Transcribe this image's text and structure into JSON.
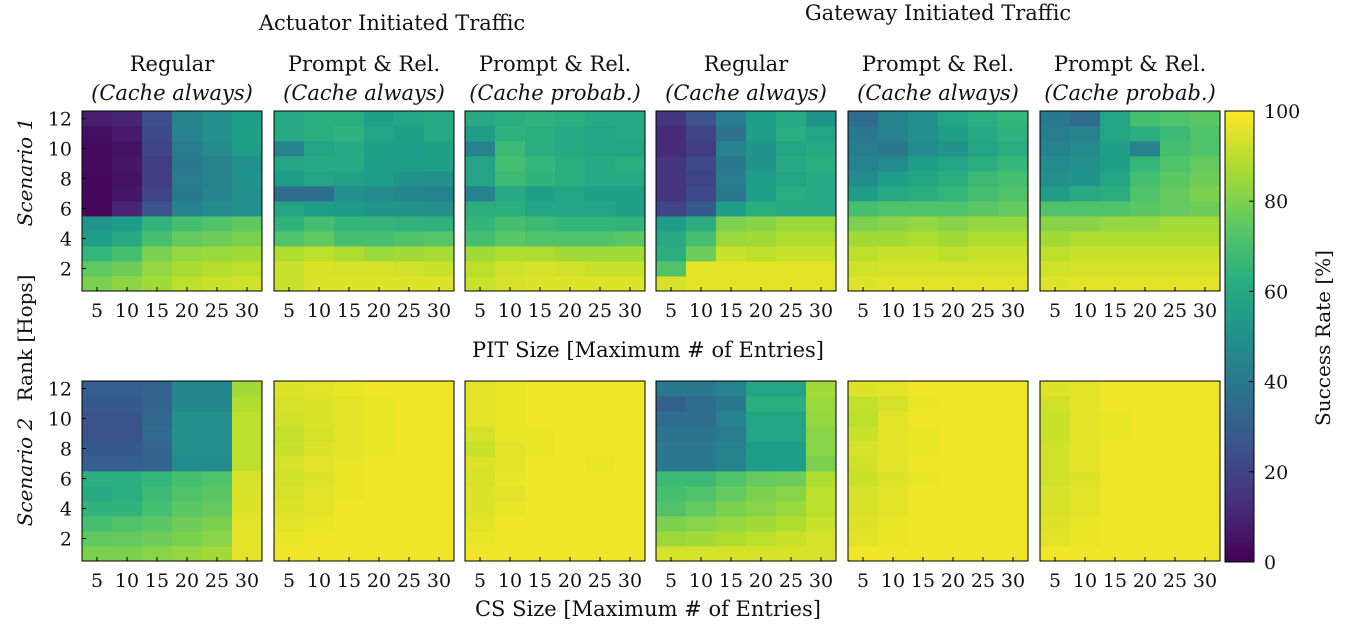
{
  "titles": {
    "actuator_group": "Actuator Initiated Traffic",
    "gateway_group": "Gateway Initiated Traffic",
    "row1_axis": "PIT Size [Maximum # of Entries]",
    "row2_axis": "CS Size [Maximum # of Entries]",
    "shared_ylabel": "Rank [Hops]",
    "scenario1": "Scenario 1",
    "scenario2": "Scenario 2"
  },
  "column_headers": [
    {
      "line1": "Regular",
      "line2": "(Cache always)"
    },
    {
      "line1": "Prompt & Rel.",
      "line2": "(Cache always)"
    },
    {
      "line1": "Prompt & Rel.",
      "line2": "(Cache probab.)"
    },
    {
      "line1": "Regular",
      "line2": "(Cache always)"
    },
    {
      "line1": "Prompt & Rel.",
      "line2": "(Cache always)"
    },
    {
      "line1": "Prompt & Rel.",
      "line2": "(Cache probab.)"
    }
  ],
  "chart_data": {
    "type": "heatmap",
    "x_ticks": [
      "5",
      "10",
      "15",
      "20",
      "25",
      "30"
    ],
    "y_ticks": [
      "2",
      "4",
      "6",
      "8",
      "10",
      "12"
    ],
    "colorbar": {
      "label": "Success Rate [%]",
      "ticks": [
        "0",
        "20",
        "40",
        "60",
        "80",
        "100"
      ],
      "range": [
        0,
        100
      ],
      "colormap": "viridis"
    },
    "grid_x_values": [
      5,
      10,
      15,
      20,
      25,
      30
    ],
    "grid_y_values": [
      1,
      2,
      3,
      4,
      5,
      6,
      7,
      8,
      9,
      10,
      11,
      12
    ],
    "panels": [
      {
        "row": 1,
        "col": 1,
        "values": [
          [
            80,
            83,
            86,
            90,
            92,
            93
          ],
          [
            75,
            78,
            84,
            87,
            89,
            90
          ],
          [
            66,
            70,
            80,
            84,
            85,
            86
          ],
          [
            55,
            60,
            70,
            76,
            78,
            80
          ],
          [
            52,
            55,
            65,
            70,
            72,
            75
          ],
          [
            2,
            10,
            25,
            45,
            48,
            50
          ],
          [
            2,
            6,
            20,
            40,
            46,
            50
          ],
          [
            2,
            5,
            18,
            42,
            45,
            52
          ],
          [
            3,
            6,
            18,
            40,
            45,
            50
          ],
          [
            3,
            5,
            20,
            42,
            48,
            55
          ],
          [
            4,
            7,
            22,
            45,
            50,
            56
          ],
          [
            8,
            10,
            24,
            45,
            50,
            55
          ]
        ]
      },
      {
        "row": 1,
        "col": 2,
        "values": [
          [
            92,
            95,
            95,
            95,
            95,
            95
          ],
          [
            92,
            95,
            94,
            94,
            93,
            92
          ],
          [
            88,
            90,
            88,
            85,
            86,
            87
          ],
          [
            72,
            75,
            70,
            70,
            72,
            73
          ],
          [
            65,
            70,
            66,
            66,
            64,
            63
          ],
          [
            58,
            55,
            54,
            52,
            51,
            50
          ],
          [
            35,
            35,
            50,
            48,
            46,
            44
          ],
          [
            55,
            58,
            57,
            55,
            52,
            50
          ],
          [
            58,
            60,
            60,
            55,
            55,
            56
          ],
          [
            45,
            58,
            60,
            56,
            55,
            56
          ],
          [
            60,
            62,
            64,
            58,
            56,
            60
          ],
          [
            60,
            62,
            62,
            56,
            58,
            60
          ]
        ]
      },
      {
        "row": 1,
        "col": 3,
        "values": [
          [
            92,
            94,
            95,
            95,
            95,
            95
          ],
          [
            90,
            93,
            94,
            93,
            92,
            92
          ],
          [
            86,
            88,
            88,
            86,
            86,
            86
          ],
          [
            70,
            74,
            72,
            72,
            72,
            74
          ],
          [
            66,
            70,
            68,
            66,
            66,
            65
          ],
          [
            62,
            62,
            58,
            58,
            58,
            56
          ],
          [
            45,
            60,
            56,
            58,
            56,
            56
          ],
          [
            58,
            68,
            65,
            62,
            60,
            60
          ],
          [
            58,
            70,
            66,
            62,
            60,
            62
          ],
          [
            45,
            68,
            62,
            60,
            58,
            58
          ],
          [
            55,
            64,
            62,
            60,
            58,
            60
          ],
          [
            60,
            62,
            64,
            62,
            60,
            60
          ]
        ]
      },
      {
        "row": 1,
        "col": 4,
        "values": [
          [
            94,
            96,
            96,
            96,
            96,
            96
          ],
          [
            72,
            96,
            96,
            96,
            96,
            96
          ],
          [
            62,
            78,
            92,
            90,
            92,
            92
          ],
          [
            60,
            70,
            85,
            86,
            88,
            88
          ],
          [
            55,
            62,
            80,
            82,
            85,
            85
          ],
          [
            20,
            28,
            55,
            62,
            60,
            60
          ],
          [
            15,
            22,
            40,
            55,
            62,
            60
          ],
          [
            15,
            20,
            42,
            55,
            58,
            60
          ],
          [
            15,
            22,
            40,
            52,
            60,
            62
          ],
          [
            12,
            18,
            45,
            52,
            58,
            60
          ],
          [
            12,
            20,
            38,
            55,
            62,
            58
          ],
          [
            15,
            25,
            42,
            55,
            60,
            52
          ]
        ]
      },
      {
        "row": 1,
        "col": 5,
        "values": [
          [
            95,
            96,
            96,
            96,
            96,
            96
          ],
          [
            93,
            94,
            94,
            94,
            94,
            94
          ],
          [
            90,
            92,
            92,
            90,
            92,
            92
          ],
          [
            86,
            86,
            88,
            86,
            88,
            88
          ],
          [
            80,
            82,
            84,
            82,
            84,
            84
          ],
          [
            70,
            72,
            72,
            72,
            74,
            76
          ],
          [
            55,
            60,
            62,
            66,
            70,
            72
          ],
          [
            48,
            55,
            58,
            62,
            68,
            70
          ],
          [
            45,
            48,
            55,
            58,
            62,
            66
          ],
          [
            42,
            40,
            48,
            52,
            58,
            62
          ],
          [
            40,
            45,
            50,
            56,
            60,
            64
          ],
          [
            35,
            45,
            50,
            58,
            62,
            66
          ]
        ]
      },
      {
        "row": 1,
        "col": 6,
        "values": [
          [
            95,
            96,
            96,
            96,
            96,
            96
          ],
          [
            93,
            94,
            94,
            94,
            94,
            94
          ],
          [
            90,
            92,
            92,
            92,
            92,
            92
          ],
          [
            86,
            88,
            88,
            88,
            88,
            88
          ],
          [
            82,
            82,
            84,
            84,
            86,
            86
          ],
          [
            72,
            72,
            72,
            74,
            76,
            78
          ],
          [
            55,
            60,
            62,
            72,
            76,
            80
          ],
          [
            50,
            52,
            58,
            70,
            74,
            78
          ],
          [
            48,
            50,
            56,
            66,
            72,
            76
          ],
          [
            45,
            48,
            55,
            45,
            70,
            72
          ],
          [
            42,
            45,
            58,
            62,
            68,
            72
          ],
          [
            40,
            35,
            58,
            70,
            72,
            74
          ]
        ]
      },
      {
        "row": 2,
        "col": 1,
        "values": [
          [
            80,
            80,
            82,
            84,
            86,
            96
          ],
          [
            75,
            76,
            78,
            80,
            82,
            96
          ],
          [
            70,
            72,
            74,
            78,
            80,
            96
          ],
          [
            65,
            65,
            70,
            74,
            76,
            95
          ],
          [
            60,
            62,
            68,
            72,
            74,
            95
          ],
          [
            62,
            62,
            66,
            70,
            72,
            94
          ],
          [
            30,
            30,
            32,
            48,
            48,
            90
          ],
          [
            28,
            28,
            32,
            50,
            50,
            90
          ],
          [
            26,
            26,
            34,
            50,
            50,
            90
          ],
          [
            25,
            25,
            33,
            50,
            50,
            90
          ],
          [
            28,
            28,
            32,
            46,
            46,
            88
          ],
          [
            30,
            30,
            32,
            46,
            46,
            86
          ]
        ]
      },
      {
        "row": 2,
        "col": 2,
        "values": [
          [
            98,
            98,
            98,
            98,
            98,
            98
          ],
          [
            97,
            98,
            98,
            98,
            98,
            98
          ],
          [
            96,
            97,
            98,
            98,
            98,
            98
          ],
          [
            95,
            96,
            98,
            98,
            98,
            98
          ],
          [
            94,
            96,
            97,
            98,
            98,
            98
          ],
          [
            93,
            95,
            97,
            98,
            98,
            98
          ],
          [
            94,
            96,
            97,
            98,
            98,
            98
          ],
          [
            92,
            95,
            96,
            97,
            98,
            98
          ],
          [
            91,
            94,
            96,
            97,
            98,
            98
          ],
          [
            93,
            95,
            96,
            97,
            98,
            98
          ],
          [
            94,
            95,
            96,
            97,
            98,
            98
          ],
          [
            95,
            96,
            97,
            98,
            98,
            98
          ]
        ]
      },
      {
        "row": 2,
        "col": 3,
        "values": [
          [
            98,
            98,
            98,
            98,
            98,
            98
          ],
          [
            97,
            98,
            98,
            98,
            98,
            98
          ],
          [
            96,
            98,
            98,
            98,
            98,
            98
          ],
          [
            95,
            97,
            98,
            98,
            98,
            98
          ],
          [
            95,
            96,
            98,
            98,
            98,
            98
          ],
          [
            94,
            97,
            98,
            98,
            98,
            98
          ],
          [
            95,
            96,
            98,
            98,
            97,
            98
          ],
          [
            92,
            96,
            97,
            98,
            98,
            98
          ],
          [
            94,
            97,
            97,
            98,
            98,
            98
          ],
          [
            96,
            97,
            98,
            98,
            98,
            98
          ],
          [
            96,
            97,
            98,
            98,
            98,
            98
          ],
          [
            96,
            97,
            98,
            98,
            98,
            98
          ]
        ]
      },
      {
        "row": 2,
        "col": 4,
        "values": [
          [
            94,
            94,
            94,
            94,
            94,
            94
          ],
          [
            85,
            86,
            88,
            90,
            92,
            94
          ],
          [
            80,
            82,
            84,
            86,
            88,
            92
          ],
          [
            72,
            76,
            80,
            82,
            85,
            90
          ],
          [
            70,
            72,
            76,
            80,
            82,
            90
          ],
          [
            68,
            68,
            72,
            76,
            78,
            88
          ],
          [
            40,
            40,
            45,
            55,
            55,
            80
          ],
          [
            40,
            40,
            45,
            55,
            55,
            82
          ],
          [
            38,
            38,
            42,
            58,
            58,
            82
          ],
          [
            35,
            35,
            45,
            58,
            58,
            84
          ],
          [
            30,
            35,
            40,
            62,
            62,
            85
          ],
          [
            40,
            40,
            45,
            58,
            58,
            86
          ]
        ]
      },
      {
        "row": 2,
        "col": 5,
        "values": [
          [
            98,
            98,
            98,
            98,
            98,
            98
          ],
          [
            96,
            97,
            98,
            98,
            98,
            98
          ],
          [
            95,
            97,
            98,
            98,
            98,
            98
          ],
          [
            94,
            96,
            98,
            98,
            98,
            98
          ],
          [
            94,
            96,
            98,
            98,
            98,
            98
          ],
          [
            92,
            95,
            97,
            98,
            98,
            98
          ],
          [
            93,
            96,
            98,
            98,
            98,
            98
          ],
          [
            94,
            96,
            97,
            98,
            98,
            98
          ],
          [
            92,
            96,
            97,
            98,
            98,
            98
          ],
          [
            90,
            96,
            98,
            98,
            98,
            98
          ],
          [
            91,
            94,
            97,
            98,
            98,
            98
          ],
          [
            95,
            96,
            98,
            98,
            98,
            98
          ]
        ]
      },
      {
        "row": 2,
        "col": 6,
        "values": [
          [
            98,
            98,
            98,
            98,
            98,
            98
          ],
          [
            96,
            97,
            98,
            98,
            98,
            98
          ],
          [
            95,
            97,
            98,
            98,
            98,
            98
          ],
          [
            94,
            96,
            98,
            98,
            98,
            98
          ],
          [
            94,
            96,
            98,
            98,
            98,
            98
          ],
          [
            93,
            95,
            98,
            98,
            98,
            98
          ],
          [
            93,
            96,
            98,
            98,
            98,
            98
          ],
          [
            93,
            96,
            98,
            98,
            98,
            98
          ],
          [
            92,
            96,
            97,
            98,
            98,
            98
          ],
          [
            92,
            96,
            97,
            98,
            98,
            98
          ],
          [
            93,
            96,
            98,
            98,
            98,
            98
          ],
          [
            95,
            96,
            98,
            98,
            98,
            98
          ]
        ]
      }
    ]
  }
}
